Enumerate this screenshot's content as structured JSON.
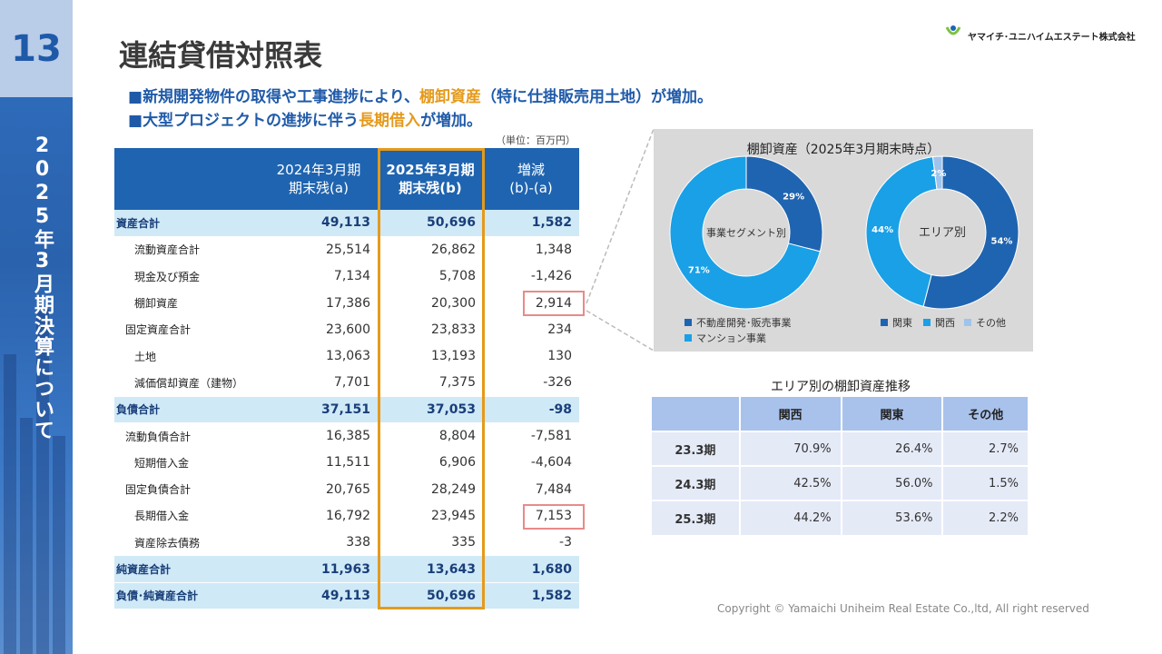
{
  "page_number": "13",
  "sidebar_title": "2025年3月期決算について",
  "title": "連結貸借対照表",
  "logo_text": "ヤマイチ･ユニハイムエステート株式会社",
  "logo_mark": "YUEG",
  "bullets": [
    {
      "marker": "■",
      "pre": "新規開発物件の取得や工事進捗により、",
      "highlight": "棚卸資産",
      "post": "（特に仕掛販売用土地）が増加。"
    },
    {
      "marker": "■",
      "pre": "大型プロジェクトの進捗に伴う",
      "highlight": "長期借入",
      "post": "が増加。"
    }
  ],
  "unit_note": "（単位：百万円）",
  "table": {
    "headers": [
      "",
      "2024年3月期\n期末残(a)",
      "2025年3月期\n期末残(b)",
      "増減\n(b)-(a)"
    ],
    "rows": [
      {
        "label": "資産合計",
        "a": "49,113",
        "b": "50,696",
        "d": "1,582",
        "type": "total",
        "indent": 0
      },
      {
        "label": "流動資産合計",
        "a": "25,514",
        "b": "26,862",
        "d": "1,348",
        "type": "normal",
        "indent": 2
      },
      {
        "label": "現金及び預金",
        "a": "7,134",
        "b": "5,708",
        "d": "-1,426",
        "type": "normal",
        "indent": 2
      },
      {
        "label": "棚卸資産",
        "a": "17,386",
        "b": "20,300",
        "d": "2,914",
        "type": "normal",
        "indent": 2
      },
      {
        "label": "固定資産合計",
        "a": "23,600",
        "b": "23,833",
        "d": "234",
        "type": "normal",
        "indent": 1
      },
      {
        "label": "土地",
        "a": "13,063",
        "b": "13,193",
        "d": "130",
        "type": "normal",
        "indent": 2
      },
      {
        "label": "減価償却資産（建物）",
        "a": "7,701",
        "b": "7,375",
        "d": "-326",
        "type": "normal",
        "indent": 2
      },
      {
        "label": "負債合計",
        "a": "37,151",
        "b": "37,053",
        "d": "-98",
        "type": "total",
        "indent": 0
      },
      {
        "label": "流動負債合計",
        "a": "16,385",
        "b": "8,804",
        "d": "-7,581",
        "type": "normal",
        "indent": 1
      },
      {
        "label": "短期借入金",
        "a": "11,511",
        "b": "6,906",
        "d": "-4,604",
        "type": "normal",
        "indent": 2
      },
      {
        "label": "固定負債合計",
        "a": "20,765",
        "b": "28,249",
        "d": "7,484",
        "type": "normal",
        "indent": 1
      },
      {
        "label": "長期借入金",
        "a": "16,792",
        "b": "23,945",
        "d": "7,153",
        "type": "normal",
        "indent": 2
      },
      {
        "label": "資産除去債務",
        "a": "338",
        "b": "335",
        "d": "-3",
        "type": "normal",
        "indent": 2
      },
      {
        "label": "純資産合計",
        "a": "11,963",
        "b": "13,643",
        "d": "1,680",
        "type": "total",
        "indent": 0
      },
      {
        "label": "負債･純資産合計",
        "a": "49,113",
        "b": "50,696",
        "d": "1,582",
        "type": "total",
        "indent": 0
      }
    ]
  },
  "colors": {
    "dark_blue": "#1f64b0",
    "light_blue": "#1aa0e6",
    "pale_blue": "#9fc3ec",
    "orange": "#e59a1b",
    "red_box": "#e98a8a"
  },
  "chart_data": [
    {
      "type": "pie",
      "title": "棚卸資産（2025年3月期末時点）",
      "center_label": "事業セグメント別",
      "categories": [
        "不動産開発･販売事業",
        "マンション事業"
      ],
      "values": [
        29,
        71
      ],
      "value_labels": [
        "29%",
        "71%"
      ],
      "colors": [
        "#1f64b0",
        "#1aa0e6"
      ]
    },
    {
      "type": "pie",
      "title": "棚卸資産（2025年3月期末時点）",
      "center_label": "エリア別",
      "categories": [
        "関東",
        "関西",
        "その他"
      ],
      "values": [
        54,
        44,
        2
      ],
      "value_labels": [
        "54%",
        "44%",
        "2%"
      ],
      "colors": [
        "#1f64b0",
        "#1aa0e6",
        "#9fc3ec"
      ]
    },
    {
      "type": "table",
      "title": "エリア別の棚卸資産推移",
      "columns": [
        "",
        "関西",
        "関東",
        "その他"
      ],
      "rows": [
        [
          "23.3期",
          "70.9%",
          "26.4%",
          "2.7%"
        ],
        [
          "24.3期",
          "42.5%",
          "56.0%",
          "1.5%"
        ],
        [
          "25.3期",
          "44.2%",
          "53.6%",
          "2.2%"
        ]
      ]
    }
  ],
  "copyright": "Copyright © Yamaichi Uniheim Real Estate Co.,ltd, All right reserved"
}
